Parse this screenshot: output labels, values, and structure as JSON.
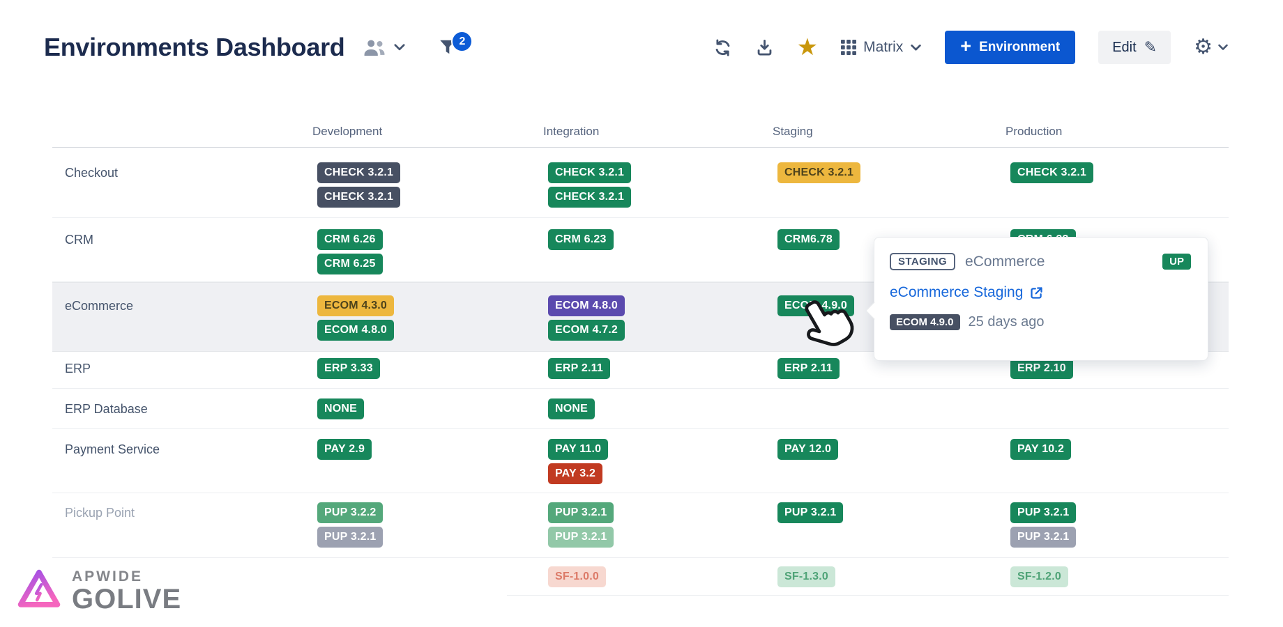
{
  "header": {
    "title": "Environments Dashboard",
    "filter_badge": "2",
    "view_label": "Matrix",
    "add_plus": "+",
    "add_label": "Environment",
    "edit_label": "Edit"
  },
  "icons": {
    "star": "★",
    "gear": "⚙",
    "pencil": "✎"
  },
  "matrix": {
    "columns": [
      "Development",
      "Integration",
      "Staging",
      "Production"
    ],
    "rows": [
      {
        "label": "Checkout",
        "muted": false,
        "highlight": false,
        "cells": [
          [
            {
              "text": "CHECK 3.2.1",
              "color": "slate"
            },
            {
              "text": "CHECK 3.2.1",
              "color": "slate"
            }
          ],
          [
            {
              "text": "CHECK 3.2.1",
              "color": "green"
            },
            {
              "text": "CHECK 3.2.1",
              "color": "green"
            }
          ],
          [
            {
              "text": "CHECK 3.2.1",
              "color": "yellow"
            }
          ],
          [
            {
              "text": "CHECK 3.2.1",
              "color": "green"
            }
          ]
        ]
      },
      {
        "label": "CRM",
        "muted": false,
        "highlight": false,
        "cells": [
          [
            {
              "text": "CRM 6.26",
              "color": "green"
            },
            {
              "text": "CRM 6.25",
              "color": "green"
            }
          ],
          [
            {
              "text": "CRM 6.23",
              "color": "green"
            }
          ],
          [
            {
              "text": "CRM6.78",
              "color": "green"
            }
          ],
          [
            {
              "text": "CRM 6.23",
              "color": "green"
            }
          ]
        ]
      },
      {
        "label": "eCommerce",
        "muted": false,
        "highlight": true,
        "cells": [
          [
            {
              "text": "ECOM 4.3.0",
              "color": "yellow"
            },
            {
              "text": "ECOM 4.8.0",
              "color": "green"
            }
          ],
          [
            {
              "text": "ECOM 4.8.0",
              "color": "purple"
            },
            {
              "text": "ECOM 4.7.2",
              "color": "green"
            }
          ],
          [
            {
              "text": "ECOM 4.9.0",
              "color": "green"
            }
          ],
          []
        ]
      },
      {
        "label": "ERP",
        "muted": false,
        "highlight": false,
        "cells": [
          [
            {
              "text": "ERP 3.33",
              "color": "green"
            }
          ],
          [
            {
              "text": "ERP 2.11",
              "color": "green"
            }
          ],
          [
            {
              "text": "ERP 2.11",
              "color": "green"
            }
          ],
          [
            {
              "text": "ERP 2.10",
              "color": "green"
            }
          ]
        ]
      },
      {
        "label": "ERP Database",
        "muted": false,
        "highlight": false,
        "cells": [
          [
            {
              "text": "NONE",
              "color": "green"
            }
          ],
          [
            {
              "text": "NONE",
              "color": "green"
            }
          ],
          [],
          []
        ]
      },
      {
        "label": "Payment Service",
        "muted": false,
        "highlight": false,
        "cells": [
          [
            {
              "text": "PAY 2.9",
              "color": "green"
            }
          ],
          [
            {
              "text": "PAY 11.0",
              "color": "green"
            },
            {
              "text": "PAY 3.2",
              "color": "red"
            }
          ],
          [
            {
              "text": "PAY 12.0",
              "color": "green"
            }
          ],
          [
            {
              "text": "PAY 10.2",
              "color": "green"
            }
          ]
        ]
      },
      {
        "label": "Pickup Point",
        "muted": true,
        "highlight": false,
        "cells": [
          [
            {
              "text": "PUP 3.2.2",
              "color": "softgreen"
            },
            {
              "text": "PUP 3.2.1",
              "color": "gray"
            }
          ],
          [
            {
              "text": "PUP 3.2.1",
              "color": "softgreen"
            },
            {
              "text": "PUP 3.2.1",
              "color": "palegreen"
            }
          ],
          [
            {
              "text": "PUP 3.2.1",
              "color": "green"
            }
          ],
          [
            {
              "text": "PUP 3.2.1",
              "color": "green"
            },
            {
              "text": "PUP 3.2.1",
              "color": "gray"
            }
          ]
        ]
      },
      {
        "label": "",
        "muted": false,
        "highlight": false,
        "cells": [
          [],
          [
            {
              "text": "SF-1.0.0",
              "color": "salmon"
            }
          ],
          [
            {
              "text": "SF-1.3.0",
              "color": "mint"
            }
          ],
          [
            {
              "text": "SF-1.2.0",
              "color": "mint"
            }
          ]
        ]
      }
    ]
  },
  "tooltip": {
    "category": "STAGING",
    "environment": "eCommerce",
    "status": "UP",
    "link": "eCommerce Staging",
    "version": "ECOM 4.9.0",
    "deployed": "25 days ago"
  },
  "brand": {
    "line1": "APWIDE",
    "line2": "GOLIVE"
  },
  "colors": {
    "accent_blue": "#0B57D0",
    "link_blue": "#1868DB",
    "badge_green": "#17875B",
    "badge_slate": "#475063",
    "badge_yellow": "#EDB73E",
    "badge_purple": "#5B4AAE",
    "badge_red": "#C13A21",
    "badge_gray": "#9CA1B1",
    "star_gold": "#C9970C",
    "highlight_row": "#EFF0F3"
  }
}
